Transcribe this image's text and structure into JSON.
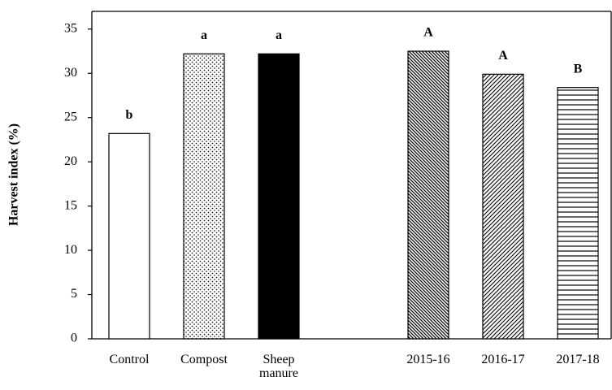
{
  "chart_data": {
    "type": "bar",
    "ylabel": "Harvest index (%)",
    "categories": [
      "Control",
      "Compost",
      "Sheep manure",
      null,
      "2015-16",
      "2016-17",
      "2017-18"
    ],
    "values": [
      23.2,
      32.2,
      32.2,
      null,
      32.5,
      29.9,
      28.4
    ],
    "letters": [
      "b",
      "a",
      "a",
      null,
      "A",
      "A",
      "B"
    ],
    "fills": [
      "none",
      "dots",
      "solid",
      null,
      "backslash",
      "slash",
      "horizontal"
    ],
    "color": "#000000",
    "ylim": [
      0,
      37
    ],
    "yticks": [
      0,
      5,
      10,
      15,
      20,
      25,
      30,
      35
    ],
    "grid": false
  }
}
